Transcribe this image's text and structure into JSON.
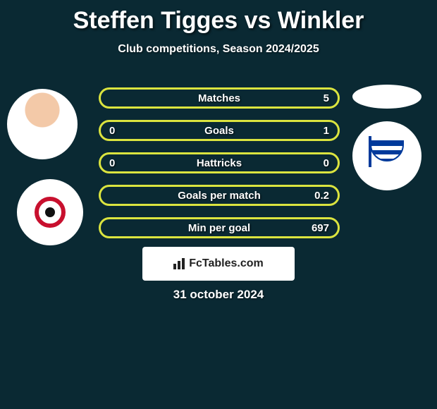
{
  "header": {
    "title": "Steffen Tigges vs Winkler",
    "subtitle": "Club competitions, Season 2024/2025"
  },
  "colors": {
    "background": "#0a2933",
    "pill_border": "#dbe43f",
    "title_text": "#ffffff",
    "branding_bg": "#ffffff",
    "branding_text": "#222222"
  },
  "stats": {
    "type": "comparison-table",
    "layout": "pill-rows",
    "pill_border_width": 3,
    "pill_radius": 16,
    "font_size": 15,
    "font_weight": 700,
    "rows": [
      {
        "left": "",
        "label": "Matches",
        "right": "5"
      },
      {
        "left": "0",
        "label": "Goals",
        "right": "1"
      },
      {
        "left": "0",
        "label": "Hattricks",
        "right": "0"
      },
      {
        "left": "",
        "label": "Goals per match",
        "right": "0.2"
      },
      {
        "left": "",
        "label": "Min per goal",
        "right": "697"
      }
    ]
  },
  "branding": {
    "text": "FcTables.com"
  },
  "date": "31 october 2024",
  "avatars": {
    "left_player": {
      "shape": "circle",
      "bg": "photo-placeholder"
    },
    "left_club": {
      "shape": "circle",
      "logo": "hurricane-style",
      "primary": "#c8102e"
    },
    "right_ellipse": {
      "shape": "ellipse",
      "bg": "#ffffff"
    },
    "right_club": {
      "shape": "circle",
      "logo": "hertha-bsc",
      "primary": "#003a9b"
    }
  }
}
